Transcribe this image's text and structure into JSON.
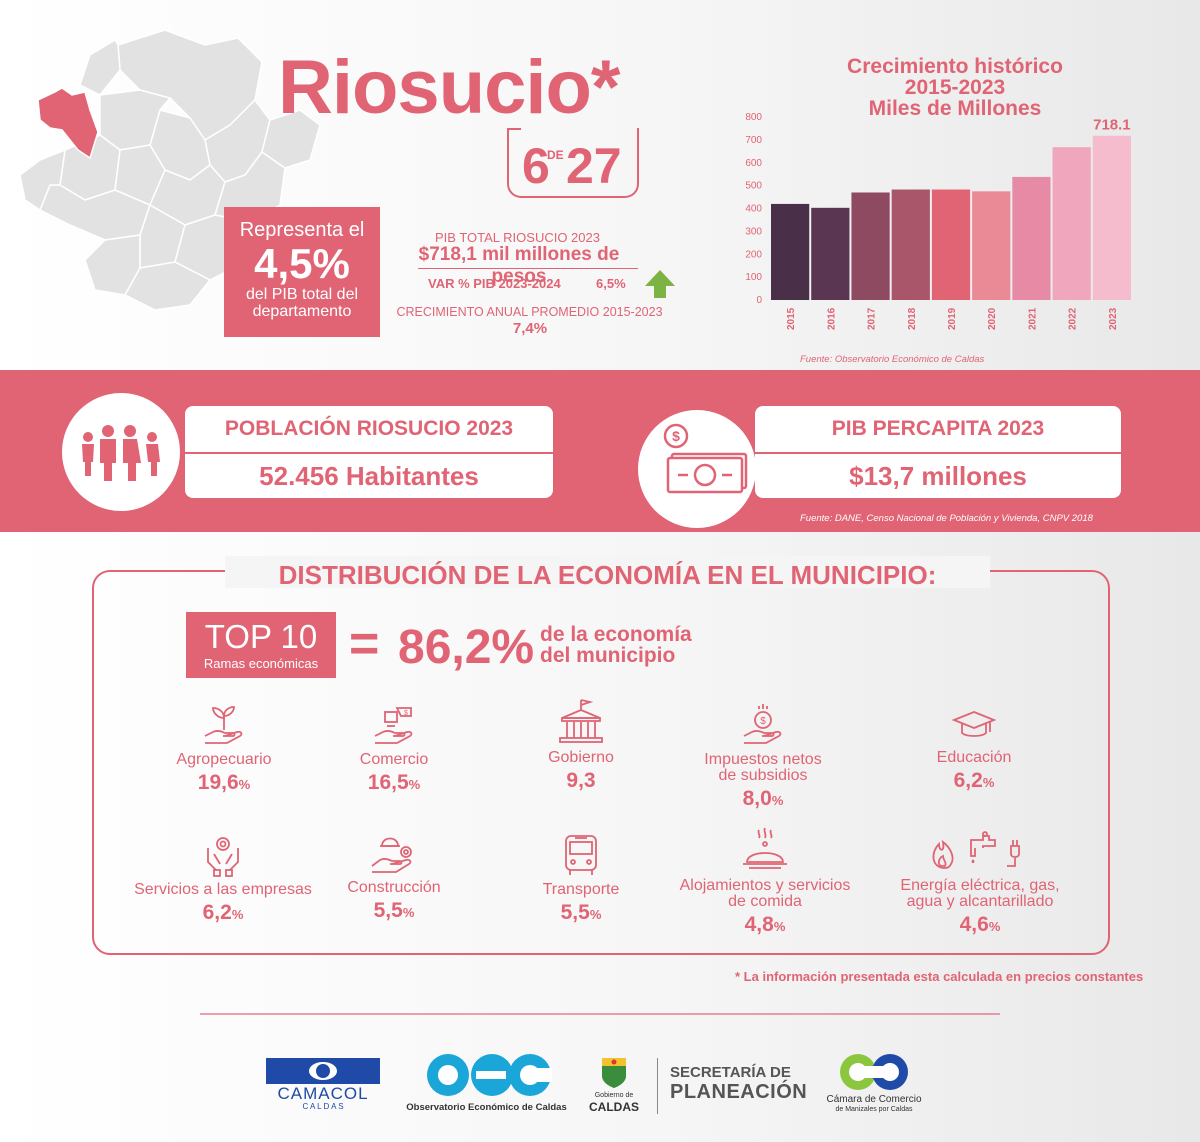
{
  "header": {
    "title": "Riosucio*",
    "rank_position": "6",
    "rank_connector": "DE",
    "rank_total": "27"
  },
  "share": {
    "line1": "Representa el",
    "value": "4,5%",
    "line3": "del PIB total del",
    "line4": "departamento"
  },
  "pib": {
    "total_label": "PIB TOTAL RIOSUCIO 2023",
    "total_value": "$718,1 mil millones de pesos",
    "var_label": "VAR % PIB 2023-2024",
    "var_value": "6,5%",
    "growth_label": "CRECIMIENTO ANUAL PROMEDIO 2015-2023",
    "growth_value": "7,4%"
  },
  "chart_data": {
    "type": "bar",
    "title": "Crecimiento histórico\n2015-2023\nMiles de Millones",
    "title_lines": [
      "Crecimiento histórico",
      "2015-2023",
      "Miles de Millones"
    ],
    "categories": [
      "2015",
      "2016",
      "2017",
      "2018",
      "2019",
      "2020",
      "2021",
      "2022",
      "2023"
    ],
    "values": [
      420,
      403,
      470,
      483,
      483,
      475,
      538,
      668,
      718.1
    ],
    "value_labels": [
      "",
      "",
      "",
      "",
      "",
      "",
      "",
      "",
      "718.1"
    ],
    "colors": [
      "#4a2f48",
      "#5b3653",
      "#8e4a60",
      "#a9566b",
      "#e06474",
      "#eb8a97",
      "#e68aa6",
      "#f0a6bc",
      "#f4bccc"
    ],
    "yticks": [
      "0",
      "100",
      "200",
      "300",
      "400",
      "500",
      "600",
      "700",
      "800"
    ],
    "ylim": [
      0,
      800
    ],
    "grid": false,
    "source": "Fuente: Observatorio Económico de Caldas"
  },
  "population": {
    "header": "POBLACIÓN RIOSUCIO 2023",
    "value": "52.456 Habitantes"
  },
  "percapita": {
    "header": "PIB PERCAPITA 2023",
    "value": "$13,7 millones"
  },
  "band_source": "Fuente: DANE, Censo Nacional de Población y Vivienda, CNPV 2018",
  "distribution": {
    "title": "DISTRIBUCIÓN DE LA ECONOMÍA EN EL MUNICIPIO:",
    "top_label": "TOP 10",
    "top_sub": "Ramas económicas",
    "equals": "=",
    "percent": "86,2%",
    "desc_line1": "de la economía",
    "desc_line2": "del municipio",
    "sectors": [
      {
        "name": "Agropecuario",
        "value": "19,6",
        "unit": "%",
        "icon": "plant-hand-icon"
      },
      {
        "name": "Comercio",
        "value": "16,5",
        "unit": "%",
        "icon": "commerce-icon"
      },
      {
        "name": "Gobierno",
        "value": "9,3",
        "unit": "",
        "icon": "government-building-icon"
      },
      {
        "name": "Impuestos netos de subsidios",
        "name_lines": [
          "Impuestos netos",
          "de subsidios"
        ],
        "value": "8,0",
        "unit": "%",
        "icon": "tax-coin-hand-icon"
      },
      {
        "name": "Educación",
        "value": "6,2",
        "unit": "%",
        "icon": "graduation-cap-icon"
      },
      {
        "name": "Servicios a las empresas",
        "value": "6,2",
        "unit": "%",
        "icon": "business-services-icon"
      },
      {
        "name": "Construcción",
        "value": "5,5",
        "unit": "%",
        "icon": "construction-icon"
      },
      {
        "name": "Transporte",
        "value": "5,5",
        "unit": "%",
        "icon": "bus-icon"
      },
      {
        "name": "Alojamientos y servicios de comida",
        "name_lines": [
          "Alojamientos y servicios",
          "de comida"
        ],
        "value": "4,8",
        "unit": "%",
        "icon": "food-cloche-icon"
      },
      {
        "name": "Energía eléctrica, gas, agua y alcantarillado",
        "name_lines": [
          "Energía eléctrica, gas,",
          "agua y alcantarillado"
        ],
        "value": "4,6",
        "unit": "%",
        "icon": "utilities-icon"
      }
    ]
  },
  "note": "* La información presentada esta calculada en precios constantes",
  "logos": {
    "camacol": "CAMACOL",
    "camacol_sub": "C A L D A S",
    "oec": "oec",
    "oec_sub": "Observatorio Económico de Caldas",
    "gobierno_top": "Gobierno de",
    "gobierno_bottom": "CALDAS",
    "secretaria_1": "SECRETARÍA DE",
    "secretaria_2": "PLANEACIÓN",
    "camara_1": "Cámara de Comercio",
    "camara_2": "de Manizales por Caldas"
  },
  "colors": {
    "accent": "#e06474",
    "green_arrow": "#7cb342"
  }
}
